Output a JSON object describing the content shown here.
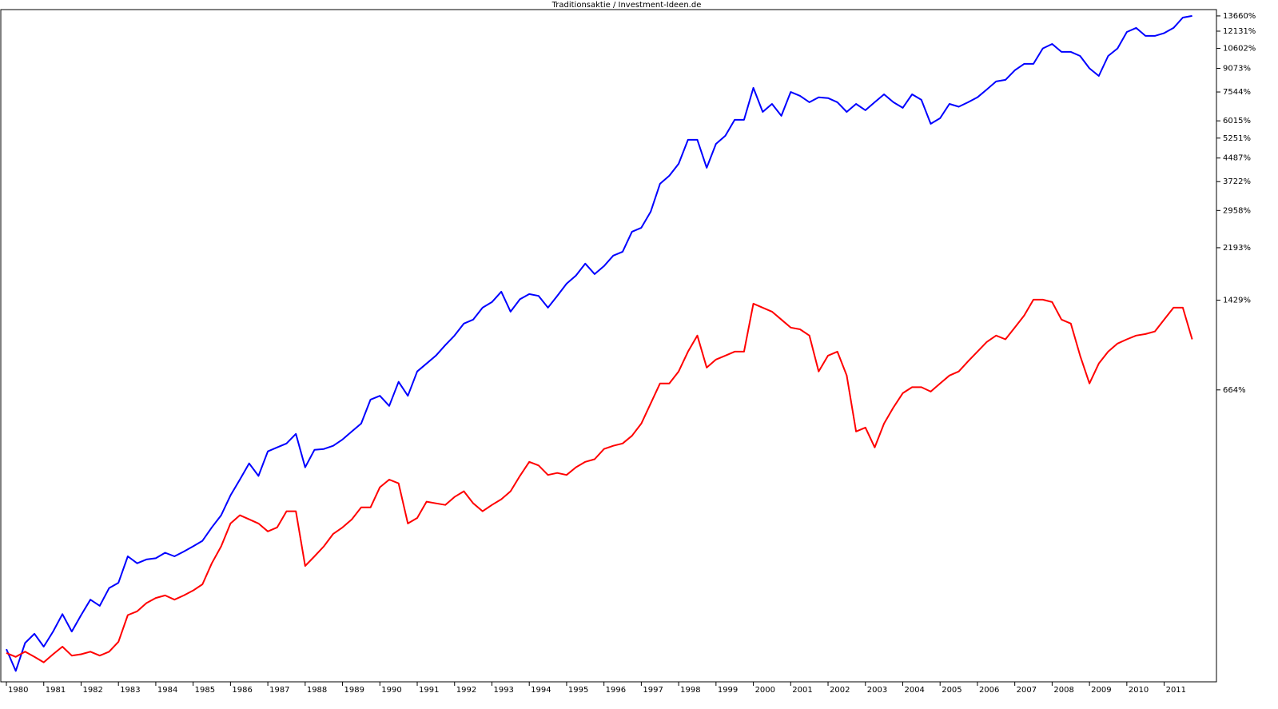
{
  "chart_data": {
    "type": "line",
    "title": "Traditionsaktie /  Investment-Ideen.de",
    "yscale": "log",
    "grid": false,
    "xlim": [
      1979.85,
      2012.4
    ],
    "xticks": [
      1980,
      1981,
      1982,
      1983,
      1984,
      1985,
      1986,
      1987,
      1988,
      1989,
      1990,
      1991,
      1992,
      1993,
      1994,
      1995,
      1996,
      1997,
      1998,
      1999,
      2000,
      2001,
      2002,
      2003,
      2004,
      2005,
      2006,
      2007,
      2008,
      2009,
      2010,
      2011
    ],
    "ylim": [
      -20,
      14350
    ],
    "yticks": [
      {
        "value": 664,
        "label": "664%"
      },
      {
        "value": 1429,
        "label": "1429%"
      },
      {
        "value": 2193,
        "label": "2193%"
      },
      {
        "value": 2958,
        "label": "2958%"
      },
      {
        "value": 3722,
        "label": "3722%"
      },
      {
        "value": 4487,
        "label": "4487%"
      },
      {
        "value": 5251,
        "label": "5251%"
      },
      {
        "value": 6015,
        "label": "6015%"
      },
      {
        "value": 7544,
        "label": "7544%"
      },
      {
        "value": 9073,
        "label": "9073%"
      },
      {
        "value": 10602,
        "label": "10602%"
      },
      {
        "value": 12131,
        "label": "12131%"
      },
      {
        "value": 13660,
        "label": "13660%"
      }
    ],
    "x": [
      1980,
      1980.25,
      1980.5,
      1980.75,
      1981,
      1981.25,
      1981.5,
      1981.75,
      1982,
      1982.25,
      1982.5,
      1982.75,
      1983,
      1983.25,
      1983.5,
      1983.75,
      1984,
      1984.25,
      1984.5,
      1984.75,
      1985,
      1985.25,
      1985.5,
      1985.75,
      1986,
      1986.25,
      1986.5,
      1986.75,
      1987,
      1987.25,
      1987.5,
      1987.75,
      1988,
      1988.25,
      1988.5,
      1988.75,
      1989,
      1989.25,
      1989.5,
      1989.75,
      1990,
      1990.25,
      1990.5,
      1990.75,
      1991,
      1991.25,
      1991.5,
      1991.75,
      1992,
      1992.25,
      1992.5,
      1992.75,
      1993,
      1993.25,
      1993.5,
      1993.75,
      1994,
      1994.25,
      1994.5,
      1994.75,
      1995,
      1995.25,
      1995.5,
      1995.75,
      1996,
      1996.25,
      1996.5,
      1996.75,
      1997,
      1997.25,
      1997.5,
      1997.75,
      1998,
      1998.25,
      1998.5,
      1998.75,
      1999,
      1999.25,
      1999.5,
      1999.75,
      2000,
      2000.25,
      2000.5,
      2000.75,
      2001,
      2001.25,
      2001.5,
      2001.75,
      2002,
      2002.25,
      2002.5,
      2002.75,
      2003,
      2003.25,
      2003.5,
      2003.75,
      2004,
      2004.25,
      2004.5,
      2004.75,
      2005,
      2005.25,
      2005.5,
      2005.75,
      2006,
      2006.25,
      2006.5,
      2006.75,
      2007,
      2007.25,
      2007.5,
      2007.75,
      2008,
      2008.25,
      2008.5,
      2008.75,
      2009,
      2009.25,
      2009.5,
      2009.75,
      2010,
      2010.25,
      2010.5,
      2010.75,
      2011,
      2011.25,
      2011.5,
      2011.75
    ],
    "series": [
      {
        "color": "#0000ff",
        "values": [
          3,
          -13,
          8,
          16,
          5,
          18,
          35,
          18,
          34,
          51,
          44,
          65,
          72,
          111,
          100,
          106,
          108,
          117,
          111,
          119,
          128,
          138,
          164,
          190,
          238,
          282,
          333,
          293,
          375,
          390,
          405,
          444,
          320,
          381,
          384,
          396,
          421,
          454,
          489,
          609,
          630,
          575,
          713,
          630,
          781,
          837,
          896,
          980,
          1063,
          1176,
          1216,
          1343,
          1407,
          1533,
          1299,
          1440,
          1503,
          1480,
          1343,
          1480,
          1637,
          1748,
          1928,
          1770,
          1890,
          2057,
          2124,
          2495,
          2577,
          2929,
          3659,
          3900,
          4287,
          5180,
          5180,
          4155,
          5018,
          5347,
          6064,
          6064,
          7791,
          6453,
          6870,
          6257,
          7544,
          7317,
          6960,
          7230,
          7190,
          6960,
          6453,
          6870,
          6537,
          6960,
          7408,
          6960,
          6662,
          7408,
          7091,
          5877,
          6140,
          6870,
          6720,
          6960,
          7230,
          7690,
          8190,
          8296,
          8940,
          9397,
          9397,
          10602,
          10981,
          10320,
          10320,
          10000,
          9073,
          8555,
          10000,
          10602,
          12057,
          12440,
          11690,
          11690,
          11950,
          12440,
          13486,
          13660
        ]
      },
      {
        "color": "#ff0000",
        "values": [
          0,
          -3,
          1,
          -3,
          -7,
          -1,
          5,
          -2,
          -1,
          1,
          -2,
          1,
          9,
          34,
          38,
          47,
          53,
          56,
          51,
          56,
          62,
          70,
          100,
          128,
          172,
          190,
          181,
          172,
          156,
          164,
          199,
          199,
          96,
          111,
          128,
          151,
          164,
          181,
          208,
          208,
          260,
          282,
          271,
          172,
          184,
          222,
          218,
          214,
          234,
          249,
          218,
          199,
          214,
          228,
          249,
          293,
          338,
          326,
          296,
          302,
          296,
          320,
          338,
          347,
          384,
          396,
          405,
          436,
          489,
          588,
          703,
          703,
          781,
          927,
          1063,
          808,
          866,
          896,
          927,
          927,
          1388,
          1343,
          1299,
          1216,
          1137,
          1120,
          1063,
          781,
          896,
          927,
          754,
          454,
          471,
          390,
          489,
          567,
          645,
          680,
          680,
          654,
          703,
          754,
          781,
          854,
          927,
          1007,
          1063,
          1030,
          1137,
          1257,
          1435,
          1435,
          1407,
          1216,
          1176,
          896,
          703,
          837,
          927,
          993,
          1030,
          1063,
          1077,
          1100,
          1216,
          1343,
          1343,
          1030
        ]
      }
    ]
  }
}
